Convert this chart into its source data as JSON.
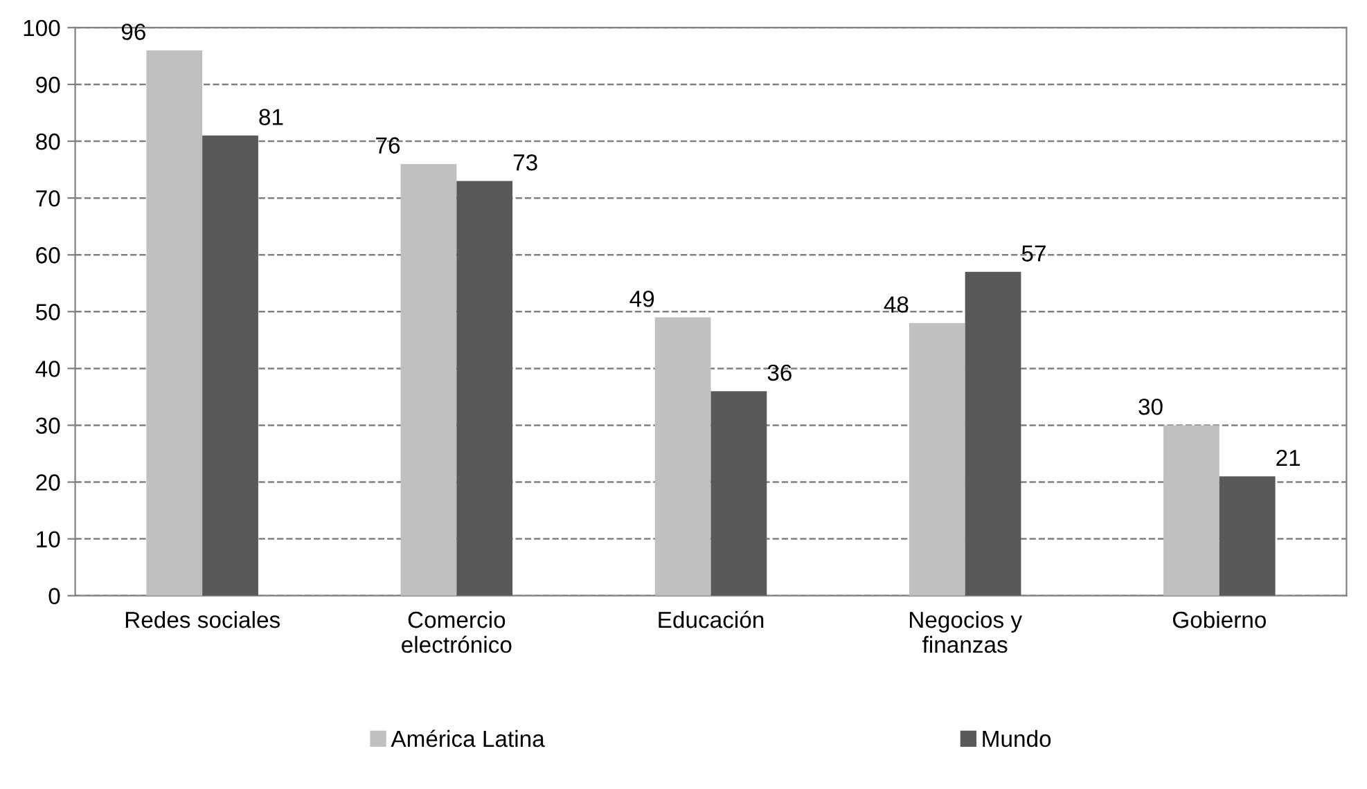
{
  "chart_data": {
    "type": "bar",
    "categories": [
      "Redes sociales",
      "Comercio\nelectrónico",
      "Educación",
      "Negocios y\nfinanzas",
      "Gobierno"
    ],
    "series": [
      {
        "name": "América Latina",
        "color": "#c0c0c0",
        "values": [
          96,
          76,
          49,
          48,
          30
        ]
      },
      {
        "name": "Mundo",
        "color": "#595959",
        "values": [
          81,
          73,
          36,
          57,
          21
        ]
      }
    ],
    "ylim": [
      0,
      100
    ],
    "yticks": [
      0,
      10,
      20,
      30,
      40,
      50,
      60,
      70,
      80,
      90,
      100
    ],
    "grid": "y",
    "line_style": "dashed",
    "legend": "bottom",
    "data_labels": true
  }
}
